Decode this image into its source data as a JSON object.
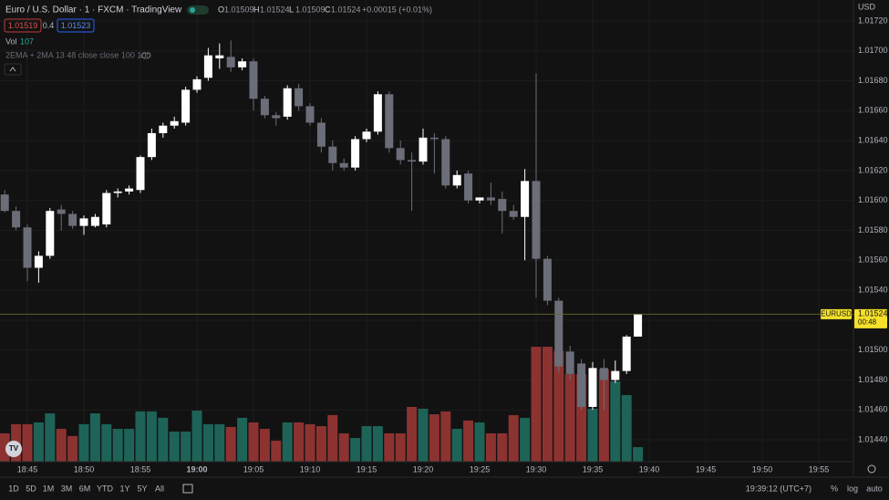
{
  "chart_data": {
    "type": "candlestick",
    "title": "Euro / U.S. Dollar · 1 · FXCM · TradingView",
    "ohlc_letters": [
      "O",
      "H",
      "L",
      "C"
    ],
    "change": "+0.00015 (+0.01%)",
    "bid": "1.01519",
    "spread": "0.4",
    "ask": "1.01523",
    "indicator": "2EMA + 2MA 13 48 close close 100 100",
    "currency": "USD",
    "symbol": "EURUSD",
    "countdown": "00:48",
    "up_color": "#ffffff",
    "down_color": "#6b6e78",
    "x": [
      "18:43",
      "18:44",
      "18:45",
      "18:46",
      "18:47",
      "18:48",
      "18:49",
      "18:50",
      "18:51",
      "18:52",
      "18:53",
      "18:54",
      "18:55",
      "18:56",
      "18:57",
      "18:58",
      "18:59",
      "19:00",
      "19:01",
      "19:02",
      "19:03",
      "19:04",
      "19:05",
      "19:06",
      "19:07",
      "19:08",
      "19:09",
      "19:10",
      "19:11",
      "19:12",
      "19:13",
      "19:14",
      "19:15",
      "19:16",
      "19:17",
      "19:18",
      "19:19",
      "19:20",
      "19:21",
      "19:22",
      "19:23",
      "19:24",
      "19:25",
      "19:26",
      "19:27",
      "19:28",
      "19:29",
      "19:30",
      "19:31",
      "19:32",
      "19:33",
      "19:34",
      "19:35",
      "19:36",
      "19:37",
      "19:38",
      "19:39"
    ],
    "open": [
      1.01604,
      1.01593,
      1.01582,
      1.01555,
      1.01563,
      1.01594,
      1.01591,
      1.01583,
      1.01583,
      1.01584,
      1.01605,
      1.01606,
      1.01607,
      1.01629,
      1.01645,
      1.0165,
      1.01652,
      1.01674,
      1.01682,
      1.01695,
      1.01696,
      1.01689,
      1.01693,
      1.01668,
      1.01657,
      1.01656,
      1.01675,
      1.01663,
      1.01652,
      1.01636,
      1.01625,
      1.01622,
      1.01641,
      1.01646,
      1.01671,
      1.01635,
      1.01627,
      1.01626,
      1.01642,
      1.01641,
      1.0161,
      1.01618,
      1.016,
      1.01602,
      1.01601,
      1.01593,
      1.01589,
      1.01613,
      1.01561,
      1.01533,
      1.01499,
      1.01491,
      1.01462,
      1.01488,
      1.0148,
      1.01486,
      1.01509
    ],
    "high": [
      1.01607,
      1.01596,
      1.01584,
      1.01566,
      1.01595,
      1.01597,
      1.01593,
      1.0159,
      1.01591,
      1.01607,
      1.01608,
      1.0161,
      1.0163,
      1.01648,
      1.01652,
      1.01656,
      1.01676,
      1.01683,
      1.01702,
      1.01705,
      1.01707,
      1.01695,
      1.01695,
      1.0167,
      1.01659,
      1.01677,
      1.01678,
      1.01665,
      1.01655,
      1.0164,
      1.01628,
      1.01643,
      1.01648,
      1.01673,
      1.01673,
      1.0164,
      1.01632,
      1.01648,
      1.01645,
      1.01643,
      1.0162,
      1.0162,
      1.01602,
      1.01612,
      1.01606,
      1.01597,
      1.01621,
      1.01685,
      1.01563,
      1.01535,
      1.01503,
      1.01494,
      1.01492,
      1.01494,
      1.01493,
      1.0151,
      1.01524
    ],
    "low": [
      1.01592,
      1.0158,
      1.01546,
      1.01545,
      1.01561,
      1.0158,
      1.01581,
      1.01577,
      1.01582,
      1.01582,
      1.01602,
      1.01604,
      1.01605,
      1.01627,
      1.01642,
      1.01648,
      1.0165,
      1.01672,
      1.0168,
      1.01688,
      1.01686,
      1.01687,
      1.0166,
      1.01655,
      1.0165,
      1.01654,
      1.0166,
      1.0165,
      1.01632,
      1.0162,
      1.0162,
      1.0162,
      1.01639,
      1.01644,
      1.01632,
      1.01624,
      1.01593,
      1.01624,
      1.01618,
      1.01608,
      1.01608,
      1.01598,
      1.01598,
      1.01597,
      1.01578,
      1.01587,
      1.0156,
      1.01535,
      1.0153,
      1.01485,
      1.0148,
      1.0146,
      1.0146,
      1.0146,
      1.01478,
      1.01484,
      1.01509
    ],
    "close": [
      1.01593,
      1.01582,
      1.01555,
      1.01563,
      1.01593,
      1.01591,
      1.01583,
      1.01588,
      1.01589,
      1.01605,
      1.01606,
      1.01608,
      1.01629,
      1.01645,
      1.0165,
      1.01653,
      1.01674,
      1.01681,
      1.01697,
      1.01697,
      1.01689,
      1.01693,
      1.01668,
      1.01657,
      1.01655,
      1.01675,
      1.01663,
      1.01652,
      1.01636,
      1.01625,
      1.01622,
      1.01641,
      1.01646,
      1.01671,
      1.01635,
      1.01627,
      1.01626,
      1.01642,
      1.01641,
      1.0161,
      1.01617,
      1.016,
      1.01602,
      1.016,
      1.01593,
      1.01589,
      1.01613,
      1.01561,
      1.01533,
      1.01489,
      1.01484,
      1.01462,
      1.01488,
      1.0148,
      1.01486,
      1.01509,
      1.01524
    ],
    "volume": {
      "name": "Vol",
      "up_color": "#1e6357",
      "down_color": "#8c3331",
      "values": [
        208,
        275,
        275,
        288,
        355,
        241,
        188,
        275,
        355,
        275,
        241,
        241,
        369,
        369,
        322,
        221,
        221,
        375,
        275,
        275,
        255,
        322,
        288,
        241,
        154,
        288,
        288,
        275,
        261,
        342,
        208,
        174,
        261,
        261,
        208,
        208,
        402,
        389,
        348,
        369,
        241,
        302,
        288,
        208,
        208,
        342,
        322,
        844,
        844,
        811,
        643,
        643,
        389,
        677,
        590,
        489,
        107
      ]
    },
    "ylim": [
      1.01426,
      1.01734
    ],
    "yticks": [
      {
        "value": 1.0144,
        "label": "1.01440"
      },
      {
        "value": 1.0146,
        "label": "1.01460"
      },
      {
        "value": 1.0148,
        "label": "1.01480"
      },
      {
        "value": 1.015,
        "label": "1.01500"
      },
      {
        "value": 1.0152,
        "label": "1.01520"
      },
      {
        "value": 1.0154,
        "label": "1.01540"
      },
      {
        "value": 1.0156,
        "label": "1.01560"
      },
      {
        "value": 1.0158,
        "label": "1.01580"
      },
      {
        "value": 1.016,
        "label": "1.01600"
      },
      {
        "value": 1.0162,
        "label": "1.01620"
      },
      {
        "value": 1.0164,
        "label": "1.01640"
      },
      {
        "value": 1.0166,
        "label": "1.01660"
      },
      {
        "value": 1.0168,
        "label": "1.01680"
      },
      {
        "value": 1.017,
        "label": "1.01700"
      },
      {
        "value": 1.0172,
        "label": "1.01720"
      }
    ],
    "xticks": [
      "18:45",
      "18:50",
      "18:55",
      "19:00",
      "19:05",
      "19:10",
      "19:15",
      "19:20",
      "19:25",
      "19:30",
      "19:35",
      "19:40",
      "19:45",
      "19:50",
      "19:55"
    ],
    "grid": true
  },
  "toolbar": {
    "ranges": [
      "1D",
      "5D",
      "1M",
      "3M",
      "6M",
      "YTD",
      "1Y",
      "5Y",
      "All"
    ],
    "clock": "19:39:12 (UTC+7)",
    "options": [
      "%",
      "log",
      "auto"
    ]
  }
}
